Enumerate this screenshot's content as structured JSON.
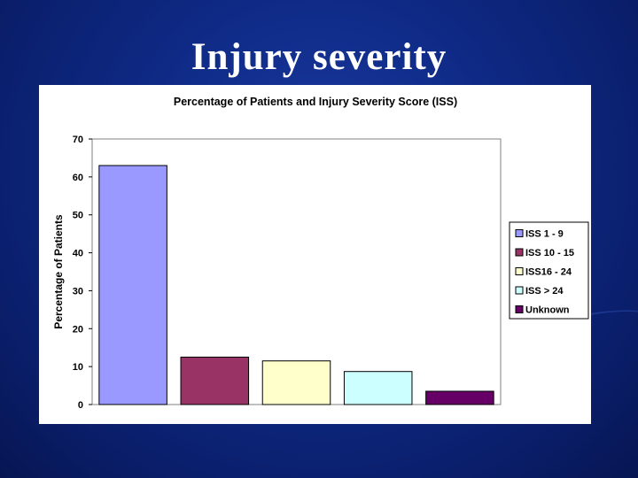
{
  "slide": {
    "title": "Injury severity"
  },
  "colors": {
    "background": "#0f2a86",
    "panel": "#ffffff"
  },
  "chart_data": {
    "type": "bar",
    "title": "Percentage of Patients and Injury Severity Score (ISS)",
    "xlabel": "",
    "ylabel": "Percentage of Patients",
    "ylim": [
      0,
      70
    ],
    "yticks": [
      0,
      10,
      20,
      30,
      40,
      50,
      60,
      70
    ],
    "legend_position": "right",
    "grid": false,
    "categories": [
      "ISS 1 - 9",
      "ISS 10 - 15",
      "ISS16 - 24",
      "ISS > 24",
      "Unknown"
    ],
    "values": [
      63,
      12.5,
      11.5,
      8.7,
      3.5
    ],
    "colors": [
      "#9999ff",
      "#993366",
      "#ffffcc",
      "#ccffff",
      "#660066"
    ]
  }
}
